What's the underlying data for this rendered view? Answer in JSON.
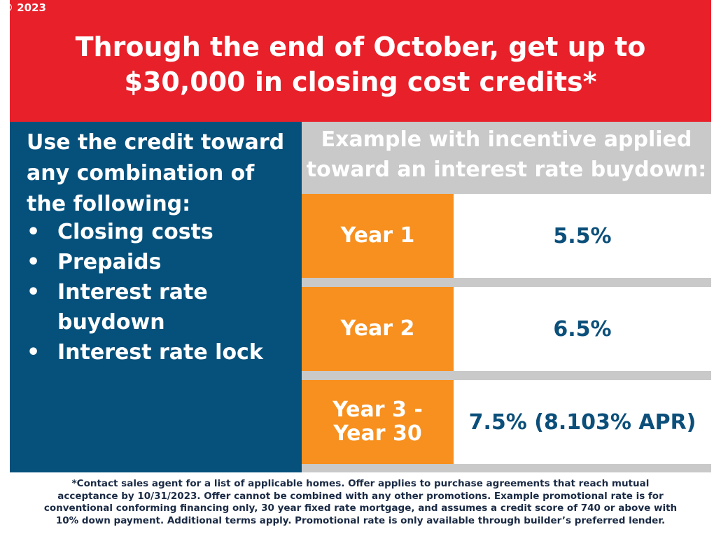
{
  "copyright": "© 2023",
  "banner": {
    "line1": "Through the end of October, get up to",
    "line2": "$30,000 in closing cost credits*"
  },
  "left": {
    "intro_lines": [
      "Use the credit toward",
      "any combination of",
      "the following:"
    ],
    "bullet_symbol": "•",
    "items": [
      {
        "line1": "Closing costs",
        "line2": ""
      },
      {
        "line1": "Prepaids",
        "line2": ""
      },
      {
        "line1": "Interest rate",
        "line2": "buydown"
      },
      {
        "line1": "Interest rate lock",
        "line2": ""
      }
    ]
  },
  "example": {
    "header_line1": "Example with incentive applied",
    "header_line2": "toward an interest rate buydown:",
    "rows": [
      {
        "year_line1": "Year 1",
        "year_line2": "",
        "rate": "5.5%"
      },
      {
        "year_line1": "Year 2",
        "year_line2": "",
        "rate": "6.5%"
      },
      {
        "year_line1": "Year 3 -",
        "year_line2": "Year 30",
        "rate": "7.5% (8.103% APR)"
      }
    ]
  },
  "footer": {
    "lines": [
      "*Contact sales agent for a list of applicable homes. Offer applies to purchase agreements that reach mutual",
      "acceptance by 10/31/2023. Offer cannot be combined with any other promotions. Example promotional rate is for",
      "conventional conforming financing only, 30 year fixed rate mortgage, and assumes a credit score of 740 or above with",
      "10% down payment. Additional terms apply. Promotional rate is only available through builder’s preferred lender."
    ]
  },
  "colors": {
    "banner_red": "#e8202a",
    "panel_blue": "#05517c",
    "accent_orange": "#f7901e",
    "divider_gray": "#c9c9c9",
    "rate_text_blue": "#0b4f7a"
  }
}
